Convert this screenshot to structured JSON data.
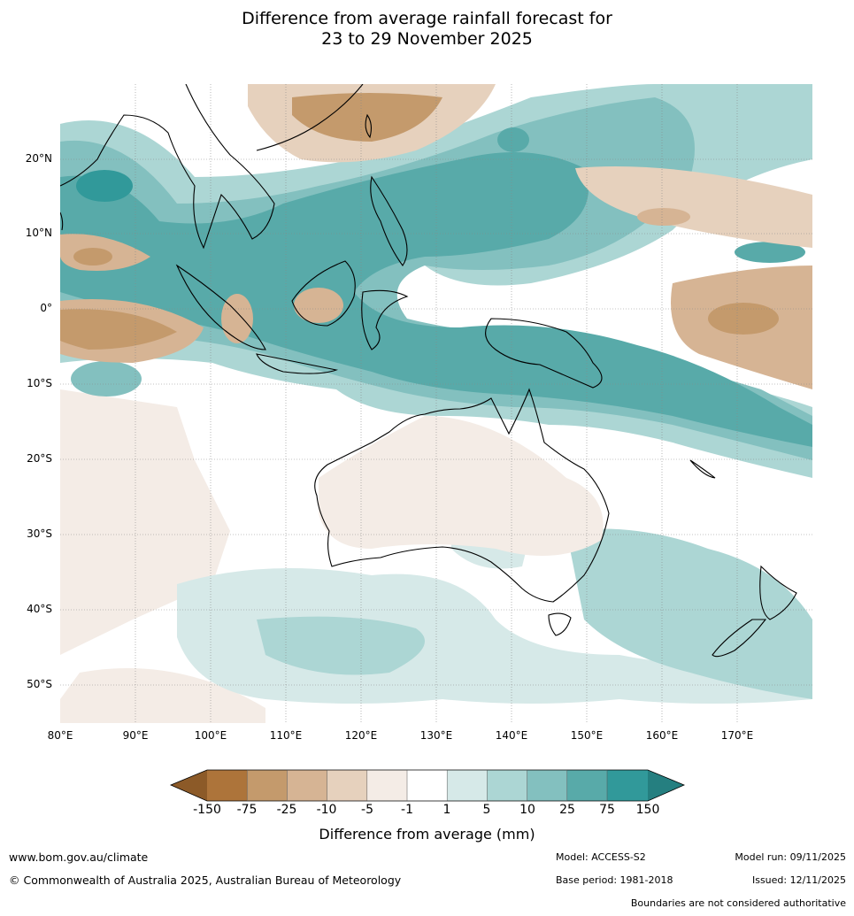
{
  "title": {
    "line1": "Difference from average rainfall forecast for",
    "line2": "23 to 29 November 2025"
  },
  "map": {
    "lat_labels": [
      "20°N",
      "10°N",
      "0°",
      "10°S",
      "20°S",
      "30°S",
      "40°S",
      "50°S"
    ],
    "lon_labels": [
      "80°E",
      "90°E",
      "100°E",
      "110°E",
      "120°E",
      "130°E",
      "140°E",
      "150°E",
      "160°E",
      "170°E"
    ]
  },
  "colorbar": {
    "ticks": [
      "-150",
      "-75",
      "-25",
      "-10",
      "-5",
      "-1",
      "1",
      "5",
      "10",
      "25",
      "75",
      "150"
    ],
    "colors": {
      "lt_-150": "#8c5a28",
      "-150_-75": "#ad743a",
      "-75_-25": "#c49a6c",
      "-25_-10": "#d6b494",
      "-10_-5": "#e6d1bd",
      "-5_-1": "#f4ece6",
      "-1_1": "#ffffff",
      "1_5": "#d6e9e8",
      "5_10": "#acd6d4",
      "10_25": "#83c0bf",
      "25_75": "#58aaa9",
      "75_150": "#31999a",
      "gt_150": "#257f80"
    },
    "label": "Difference from average (mm)"
  },
  "footer": {
    "website": "www.bom.gov.au/climate",
    "copyright": "© Commonwealth of Australia 2025, Australian Bureau of Meteorology",
    "model": "Model: ACCESS-S2",
    "base_period": "Base period: 1981-2018",
    "model_run": "Model run: 09/11/2025",
    "issued": "Issued: 12/11/2025",
    "disclaimer": "Boundaries are not considered authoritative"
  }
}
